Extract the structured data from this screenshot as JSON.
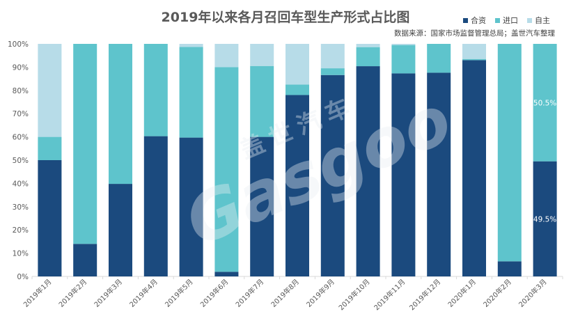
{
  "chart_data": {
    "type": "bar",
    "stacked": true,
    "title": "2019年以来各月召回车型生产形式占比图",
    "subtitle": "数据来源：国家市场监督管理总局；盖世汽车整理",
    "categories": [
      "2019年1月",
      "2019年2月",
      "2019年3月",
      "2019年4月",
      "2019年5月",
      "2019年6月",
      "2019年7月",
      "2019年8月",
      "2019年9月",
      "2019年10月",
      "2019年11月",
      "2019年12月",
      "2020年1月",
      "2020年2月",
      "2020年3月"
    ],
    "series": [
      {
        "name": "合资",
        "color": "#1b4a7e",
        "values": [
          50,
          14,
          39.8,
          60.3,
          59.7,
          2,
          60,
          78,
          86.6,
          90.4,
          87.3,
          87.6,
          93,
          6.5,
          49.5
        ]
      },
      {
        "name": "进口",
        "color": "#5ec4cc",
        "values": [
          10,
          86,
          60.2,
          39.7,
          39,
          88,
          30.5,
          4.5,
          2.9,
          8.2,
          12.2,
          12.4,
          0.5,
          93.5,
          50.5
        ]
      },
      {
        "name": "自主",
        "color": "#b7dce8",
        "values": [
          40,
          0,
          0,
          0,
          1.3,
          10,
          9.5,
          17.5,
          10.5,
          1.4,
          0.5,
          0,
          6.5,
          0,
          0
        ]
      }
    ],
    "data_labels": [
      {
        "category": "2020年3月",
        "series": "进口",
        "text": "50.5%"
      },
      {
        "category": "2020年3月",
        "series": "合资",
        "text": "49.5%"
      }
    ],
    "ylim": [
      0,
      100
    ],
    "yticks": [
      "0%",
      "10%",
      "20%",
      "30%",
      "40%",
      "50%",
      "60%",
      "70%",
      "80%",
      "90%",
      "100%"
    ],
    "legend_position": "top-right",
    "grid": false
  },
  "watermark": {
    "brand_cn": "盖世汽车",
    "brand_en": "Gasgoo"
  }
}
